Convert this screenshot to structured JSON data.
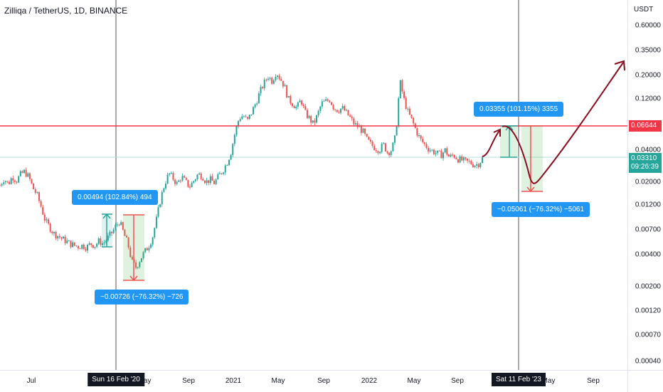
{
  "chart": {
    "title": "Zilliqa / TetherUS, 1D, BINANCE",
    "unit": "USDT"
  },
  "price_axis": {
    "labels": [
      "0.60000",
      "0.35000",
      "0.20000",
      "0.12000",
      "0.06644",
      "0.04000",
      "0.03310",
      "0.02000",
      "0.01200",
      "0.00700",
      "0.00400",
      "0.00200",
      "0.00120",
      "0.00070",
      "0.00040"
    ],
    "tags": {
      "resistance": {
        "value": "0.06644",
        "color": "#f23645"
      },
      "current": {
        "value": "0.03310",
        "countdown": "09:26:39",
        "color": "#26a69a"
      }
    }
  },
  "time_axis": {
    "labels": [
      "Jul",
      "May",
      "Sep",
      "2021",
      "May",
      "Sep",
      "2022",
      "May",
      "Sep",
      "May",
      "Sep"
    ],
    "crosshair_left": "Sun 16 Feb '20",
    "crosshair_right": "Sat 11 Feb '23"
  },
  "callouts": {
    "left_gain": "0.00494 (102.84%) 494",
    "left_loss": "−0.00726 (−76.32%) −726",
    "right_gain": "0.03355 (101.15%) 3355",
    "right_loss": "−0.05061 (−76.32%) −5061"
  },
  "colors": {
    "up": "#26a69a",
    "down": "#ef5350",
    "resistance_line": "#f23645",
    "projection": "#880e1f",
    "callout": "#2196f3"
  },
  "chart_data": {
    "type": "candlestick",
    "scale": "log",
    "ylim": [
      0.00035,
      0.8
    ],
    "series_close": [
      0.0185,
      0.0215,
      0.019,
      0.0225,
      0.0205,
      0.0235,
      0.025,
      0.022,
      0.0175,
      0.015,
      0.0115,
      0.0085,
      0.0075,
      0.0065,
      0.0062,
      0.0058,
      0.0055,
      0.0052,
      0.005,
      0.0049,
      0.005,
      0.0048,
      0.0052,
      0.005,
      0.0055,
      0.0052,
      0.0058,
      0.0065,
      0.0075,
      0.0085,
      0.0065,
      0.0052,
      0.0035,
      0.0031,
      0.0037,
      0.0043,
      0.0049,
      0.006,
      0.009,
      0.014,
      0.0195,
      0.024,
      0.0215,
      0.019,
      0.0225,
      0.02,
      0.018,
      0.0205,
      0.0235,
      0.023,
      0.02,
      0.021,
      0.0195,
      0.0225,
      0.0255,
      0.03,
      0.038,
      0.058,
      0.08,
      0.085,
      0.075,
      0.09,
      0.11,
      0.14,
      0.17,
      0.2,
      0.18,
      0.22,
      0.19,
      0.16,
      0.12,
      0.11,
      0.1,
      0.12,
      0.09,
      0.08,
      0.07,
      0.085,
      0.11,
      0.115,
      0.12,
      0.1,
      0.095,
      0.1,
      0.09,
      0.08,
      0.07,
      0.066,
      0.06,
      0.05,
      0.045,
      0.042,
      0.04,
      0.045,
      0.038,
      0.04,
      0.055,
      0.18,
      0.12,
      0.09,
      0.075,
      0.06,
      0.05,
      0.045,
      0.041,
      0.039,
      0.037,
      0.036,
      0.04,
      0.034,
      0.036,
      0.033,
      0.032,
      0.031,
      0.0305,
      0.029,
      0.0295,
      0.0331
    ],
    "last_price": 0.0331,
    "resistance_level": 0.06644,
    "measurements": [
      {
        "label": "0.00494 (102.84%) 494",
        "from": 0.0048,
        "to": 0.0097
      },
      {
        "label": "−0.00726 (−76.32%) −726",
        "from": 0.0095,
        "to": 0.0023
      },
      {
        "label": "0.03355 (101.15%) 3355",
        "from": 0.0331,
        "to": 0.0666
      },
      {
        "label": "−0.05061 (−76.32%) −5061",
        "from": 0.0663,
        "to": 0.0157
      }
    ]
  }
}
